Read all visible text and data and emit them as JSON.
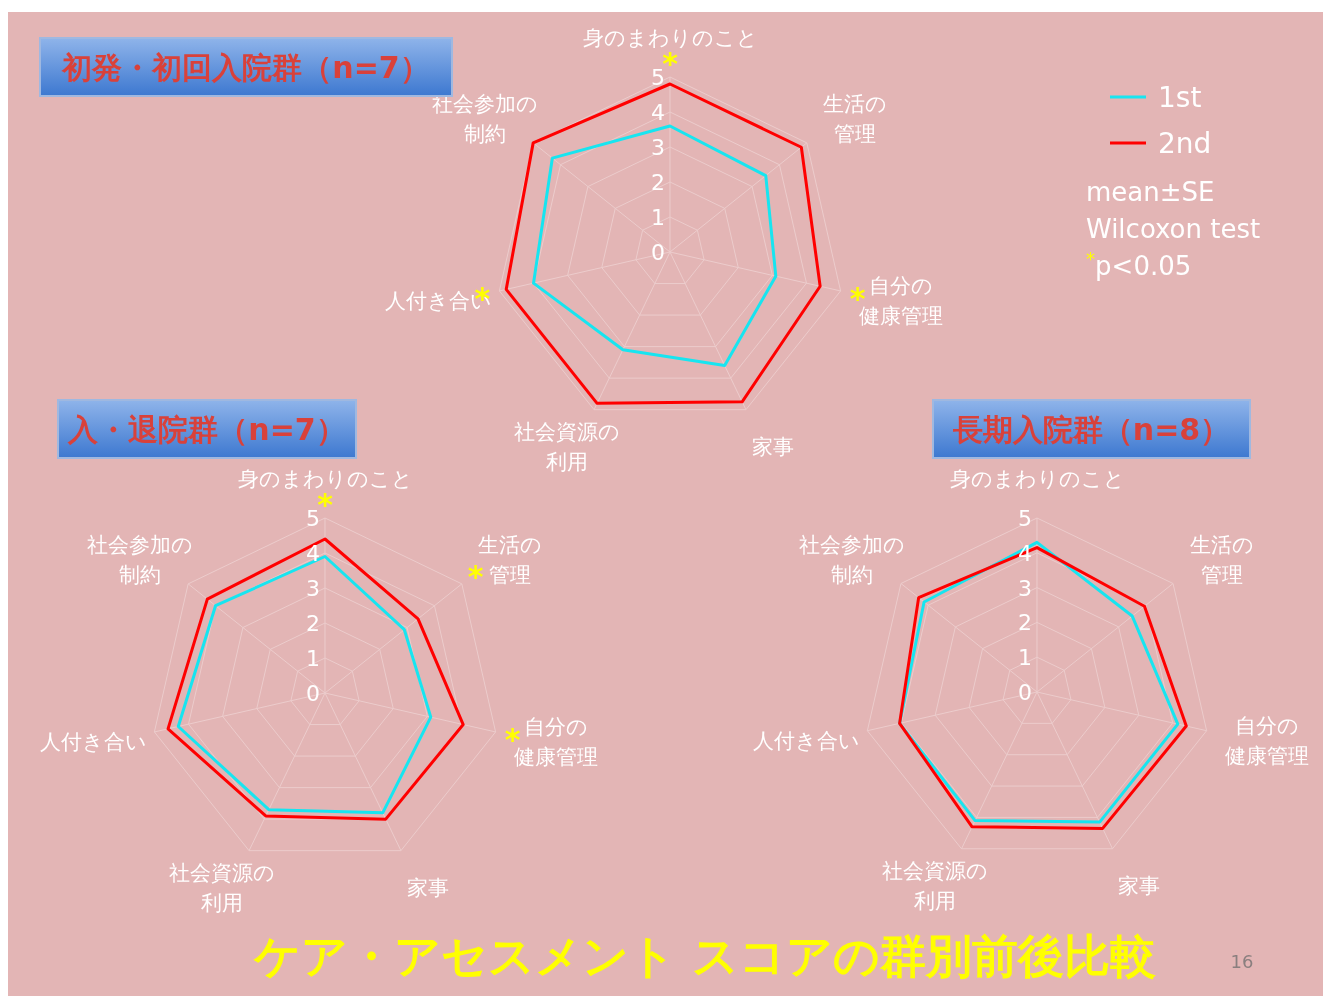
{
  "chart_data": [
    {
      "type": "radar",
      "title": "初発・初回入院群（n=7）",
      "categories": [
        "身のまわりのこと",
        "生活の管理",
        "自分の健康管理",
        "家事",
        "社会資源の利用",
        "人付き合い",
        "社会参加の制約"
      ],
      "ylim": [
        0,
        5
      ],
      "yticks": [
        0,
        1,
        2,
        3,
        4,
        5
      ],
      "grid": true,
      "legend": "top right",
      "series": [
        {
          "name": "1st",
          "color": "#17e5f0",
          "values": [
            3.6,
            3.5,
            3.1,
            3.6,
            3.1,
            4.0,
            4.3
          ]
        },
        {
          "name": "2nd",
          "color": "#ff0000",
          "values": [
            4.8,
            4.8,
            4.4,
            4.75,
            4.8,
            4.8,
            5.0
          ]
        }
      ],
      "annotations": [
        {
          "text": "*",
          "x": "身のまわりのこと"
        },
        {
          "text": "*",
          "x": "自分の健康管理"
        },
        {
          "text": "*",
          "x": "人付き合い"
        },
        "mean±SE",
        "Wilcoxon test",
        "$^{*}$p<0.05"
      ]
    },
    {
      "type": "radar",
      "title": "入・退院群（n=7）",
      "categories": [
        "身のまわりのこと",
        "生活の管理",
        "自分の健康管理",
        "家事",
        "社会資源の利用",
        "人付き合い",
        "社会参加の制約"
      ],
      "ylim": [
        0,
        5
      ],
      "yticks": [
        0,
        1,
        2,
        3,
        4,
        5
      ],
      "grid": true,
      "series": [
        {
          "color": "#17e5f0",
          "values": [
            3.9,
            2.9,
            3.1,
            3.8,
            3.7,
            4.3,
            4.0
          ]
        },
        {
          "color": "#ff0000",
          "values": [
            4.4,
            3.4,
            4.05,
            4.0,
            3.9,
            4.6,
            4.3
          ]
        }
      ],
      "annotations": [
        {
          "text": "*",
          "x": "身のまわりのこと"
        },
        {
          "text": "*",
          "x": "生活の管理"
        },
        {
          "text": "*",
          "x": "自分の健康管理"
        }
      ]
    },
    {
      "type": "radar",
      "title": "長期入院群（n=8）",
      "categories": [
        "身のまわりのこと",
        "生活の管理",
        "自分の健康管理",
        "家事",
        "社会資源の利用",
        "人付き合い",
        "社会参加の制約"
      ],
      "ylim": [
        0,
        5
      ],
      "yticks": [
        0,
        1,
        2,
        3,
        4,
        5
      ],
      "grid": true,
      "series": [
        {
          "color": "#17e5f0",
          "values": [
            4.3,
            3.5,
            4.15,
            4.15,
            4.1,
            4.05,
            4.15
          ]
        },
        {
          "color": "#ff0000",
          "values": [
            4.15,
            3.95,
            4.4,
            4.35,
            4.3,
            4.05,
            4.35
          ]
        }
      ]
    },
    {
      "type": "other",
      "title": "ケア・アセスメント スコアの群別前後比較",
      "annotations": [
        "16"
      ]
    }
  ]
}
